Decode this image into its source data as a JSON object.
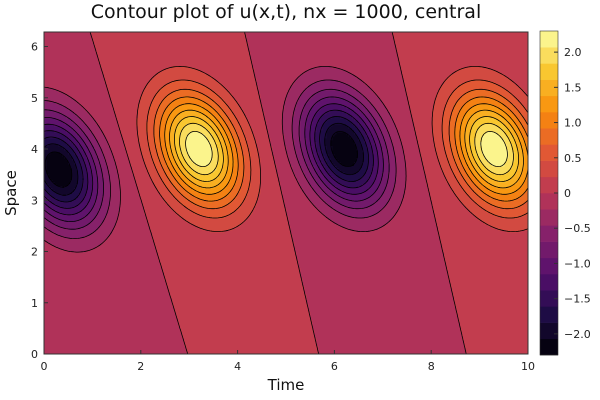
{
  "chart_data": {
    "type": "contour",
    "title": "Contour plot of u(x,t), nx = 1000, central",
    "xlabel": "Time",
    "ylabel": "Space",
    "xlim": [
      0,
      10
    ],
    "ylim": [
      0,
      6.283
    ],
    "xticks": [
      "0",
      "2",
      "4",
      "6",
      "8",
      "10"
    ],
    "yticks": [
      "0",
      "1",
      "2",
      "3",
      "4",
      "5",
      "6"
    ],
    "colorbar": {
      "colormap": "inferno",
      "range": [
        -2.3,
        2.3
      ],
      "levels": 20,
      "ticks": [
        "−2.0",
        "−1.5",
        "−1.0",
        "−0.5",
        "0",
        "0.5",
        "1.0",
        "1.5",
        "2.0"
      ]
    },
    "features": [
      {
        "kind": "minimum",
        "t": 0.3,
        "x": 3.6,
        "value": -2.3
      },
      {
        "kind": "maximum",
        "t": 3.2,
        "x": 4.0,
        "value": 2.3
      },
      {
        "kind": "minimum",
        "t": 6.2,
        "x": 4.0,
        "value": -2.3
      },
      {
        "kind": "maximum",
        "t": 9.3,
        "x": 4.0,
        "value": 2.3
      }
    ],
    "legend": "none",
    "grid": false
  }
}
